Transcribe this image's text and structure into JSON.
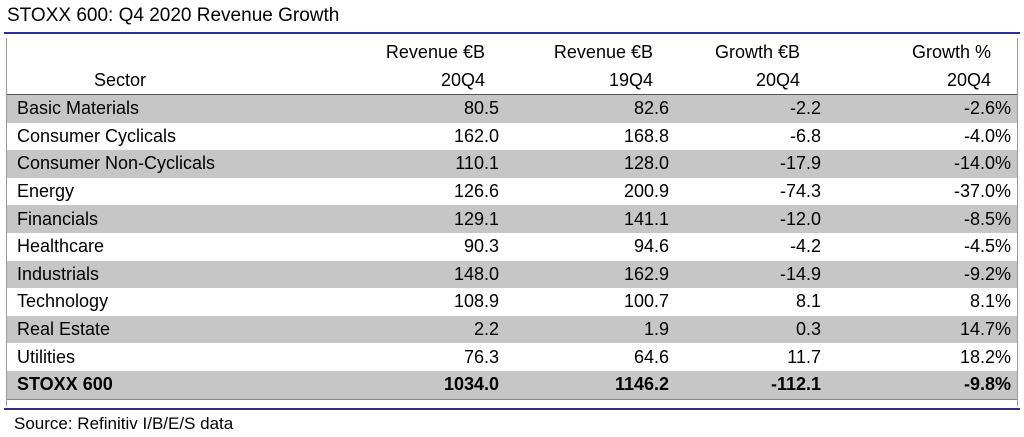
{
  "title": "STOXX 600: Q4 2020 Revenue Growth",
  "source": "Source: Refinitiv I/B/E/S data",
  "chart_data": {
    "type": "table",
    "columns": [
      {
        "line1": "",
        "line2": "Sector"
      },
      {
        "line1": "Revenue €B",
        "line2": "20Q4"
      },
      {
        "line1": "Revenue €B",
        "line2": "19Q4"
      },
      {
        "line1": "Growth €B",
        "line2": "20Q4"
      },
      {
        "line1": "Growth %",
        "line2": "20Q4"
      }
    ],
    "rows": [
      [
        "Basic Materials",
        "80.5",
        "82.6",
        "-2.2",
        "-2.6%"
      ],
      [
        "Consumer Cyclicals",
        "162.0",
        "168.8",
        "-6.8",
        "-4.0%"
      ],
      [
        "Consumer Non-Cyclicals",
        "110.1",
        "128.0",
        "-17.9",
        "-14.0%"
      ],
      [
        "Energy",
        "126.6",
        "200.9",
        "-74.3",
        "-37.0%"
      ],
      [
        "Financials",
        "129.1",
        "141.1",
        "-12.0",
        "-8.5%"
      ],
      [
        "Healthcare",
        "90.3",
        "94.6",
        "-4.2",
        "-4.5%"
      ],
      [
        "Industrials",
        "148.0",
        "162.9",
        "-14.9",
        "-9.2%"
      ],
      [
        "Technology",
        "108.9",
        "100.7",
        "8.1",
        "8.1%"
      ],
      [
        "Real Estate",
        "2.2",
        "1.9",
        "0.3",
        "14.7%"
      ],
      [
        "Utilities",
        "76.3",
        "64.6",
        "11.7",
        "18.2%"
      ]
    ],
    "total": [
      "STOXX 600",
      "1034.0",
      "1146.2",
      "-112.1",
      "-9.8%"
    ],
    "shaded_rows": "alternating, starting with first row",
    "colors": {
      "shade": "#c6c6c6",
      "rule": "#2b2f8f"
    }
  }
}
